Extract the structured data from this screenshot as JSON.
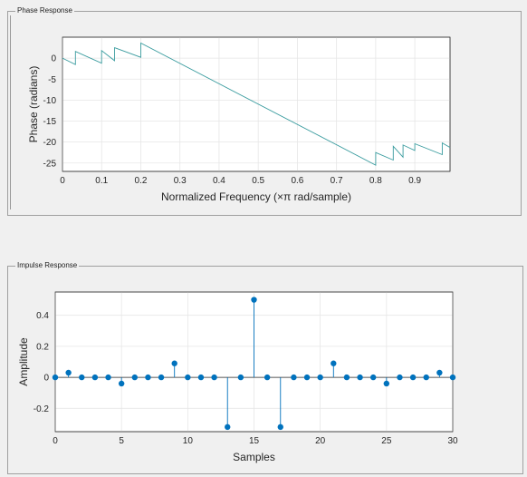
{
  "phase_panel": {
    "title": "Phase Response"
  },
  "impulse_panel": {
    "title": "Impulse Response"
  },
  "chart_data": [
    {
      "type": "line",
      "xlabel": "Normalized Frequency (×π rad/sample)",
      "ylabel": "Phase (radians)",
      "xlim": [
        0,
        0.99
      ],
      "ylim": [
        -27,
        5
      ],
      "xticks": [
        0,
        0.1,
        0.2,
        0.3,
        0.4,
        0.5,
        0.6,
        0.7,
        0.8,
        0.9
      ],
      "xtick_labels": [
        "0",
        "0.1",
        "0.2",
        "0.3",
        "0.4",
        "0.5",
        "0.6",
        "0.7",
        "0.8",
        "0.9"
      ],
      "yticks": [
        0,
        -5,
        -10,
        -15,
        -20,
        -25
      ],
      "ytick_labels": [
        "0",
        "-5",
        "-10",
        "-15",
        "-20",
        "-25"
      ],
      "grid": true,
      "color": "#3a9c9f",
      "x": [
        0,
        0.033,
        0.033,
        0.1,
        0.1,
        0.133,
        0.133,
        0.2,
        0.2,
        0.8,
        0.8,
        0.845,
        0.845,
        0.87,
        0.87,
        0.9,
        0.9,
        0.97,
        0.97,
        0.99
      ],
      "y": [
        0,
        -1.5,
        1.6,
        -1.2,
        1.8,
        -0.6,
        2.5,
        0.2,
        3.6,
        -25.5,
        -22.5,
        -24.3,
        -21.0,
        -23.6,
        -20.7,
        -22.0,
        -20.4,
        -23.0,
        -20.2,
        -21.3
      ]
    },
    {
      "type": "stem",
      "xlabel": "Samples",
      "ylabel": "Amplitude",
      "xlim": [
        0,
        30
      ],
      "ylim": [
        -0.35,
        0.55
      ],
      "xticks": [
        0,
        5,
        10,
        15,
        20,
        25,
        30
      ],
      "xtick_labels": [
        "0",
        "5",
        "10",
        "15",
        "20",
        "25",
        "30"
      ],
      "yticks": [
        0.4,
        0.2,
        0,
        -0.2
      ],
      "ytick_labels": [
        "0.4",
        "0.2",
        "0",
        "-0.2"
      ],
      "grid": true,
      "color": "#0072bd",
      "x": [
        0,
        1,
        2,
        3,
        4,
        5,
        6,
        7,
        8,
        9,
        10,
        11,
        12,
        13,
        14,
        15,
        16,
        17,
        18,
        19,
        20,
        21,
        22,
        23,
        24,
        25,
        26,
        27,
        28,
        29,
        30
      ],
      "values": [
        0,
        0.03,
        0,
        0,
        0,
        -0.04,
        0,
        0,
        0,
        0.09,
        0,
        0,
        0,
        -0.32,
        0,
        0.5,
        0,
        -0.32,
        0,
        0,
        0,
        0.09,
        0,
        0,
        0,
        -0.04,
        0,
        0,
        0,
        0.03,
        0
      ]
    }
  ]
}
